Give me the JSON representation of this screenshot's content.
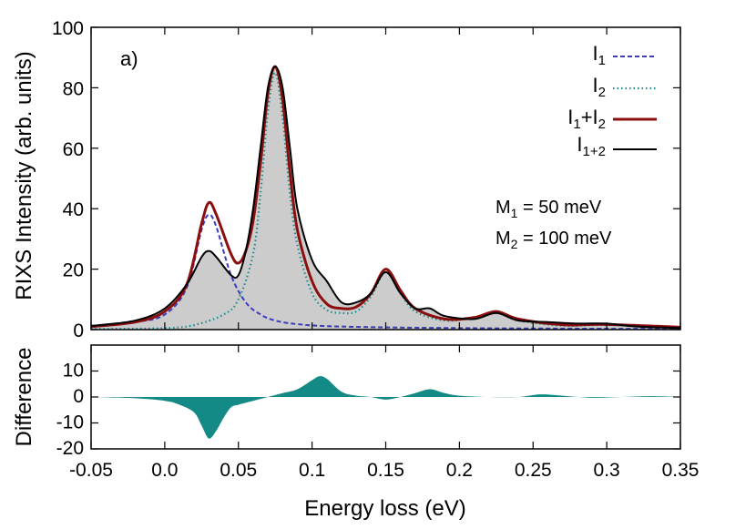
{
  "chart_data": [
    {
      "type": "line",
      "panel_label": "a)",
      "ylabel": "RIXS Intensity (arb. units)",
      "xlim": [
        -0.05,
        0.35
      ],
      "ylim": [
        0,
        100
      ],
      "xticks": [
        "-0.05",
        "0.0",
        "0.05",
        "0.1",
        "0.15",
        "0.2",
        "0.25",
        "0.3",
        "0.35"
      ],
      "yticks": [
        "0",
        "20",
        "40",
        "60",
        "80",
        "100"
      ],
      "annotations": {
        "m1": "M1 = 50 meV",
        "m2": "M2 = 100 meV"
      },
      "colors": {
        "i1": "#3b3bc0",
        "i2": "#1f8a8a",
        "sum": "#8b0f0f",
        "i12": "#000000",
        "fill": "#cccccc"
      },
      "legend_position": "top-right",
      "series": [
        {
          "key": "i1",
          "name": "I1",
          "x": [
            -0.05,
            -0.02,
            0.0,
            0.015,
            0.025,
            0.03,
            0.035,
            0.045,
            0.055,
            0.065,
            0.075,
            0.09,
            0.12,
            0.2,
            0.35
          ],
          "y": [
            0.8,
            2.5,
            5,
            14,
            33,
            38,
            34,
            18,
            9,
            5,
            3,
            1.8,
            1,
            0.5,
            0.2
          ]
        },
        {
          "key": "i2",
          "name": "I2",
          "x": [
            -0.05,
            0.0,
            0.02,
            0.04,
            0.05,
            0.06,
            0.065,
            0.07,
            0.075,
            0.08,
            0.085,
            0.09,
            0.1,
            0.11,
            0.12,
            0.13,
            0.14,
            0.15,
            0.16,
            0.17,
            0.19,
            0.21,
            0.225,
            0.24,
            0.27,
            0.3,
            0.35
          ],
          "y": [
            0.2,
            0.5,
            1.5,
            5,
            10,
            25,
            45,
            72,
            85,
            70,
            45,
            28,
            12,
            6.5,
            5.5,
            6,
            11,
            19,
            12,
            6,
            3,
            4,
            5.5,
            3,
            1.3,
            1.5,
            0.8
          ]
        },
        {
          "key": "sum",
          "name": "I1+I2",
          "x": [
            -0.05,
            -0.02,
            0.0,
            0.015,
            0.025,
            0.03,
            0.035,
            0.045,
            0.05,
            0.055,
            0.06,
            0.065,
            0.07,
            0.075,
            0.08,
            0.085,
            0.09,
            0.1,
            0.11,
            0.12,
            0.13,
            0.14,
            0.15,
            0.16,
            0.17,
            0.19,
            0.21,
            0.225,
            0.24,
            0.27,
            0.3,
            0.35
          ],
          "y": [
            1,
            2.5,
            6,
            15,
            35,
            42,
            38,
            25,
            22,
            26,
            36,
            55,
            78,
            87,
            76,
            52,
            33,
            16,
            8.5,
            7,
            7.5,
            12,
            20,
            13,
            7,
            3.5,
            4,
            6,
            3.5,
            1.6,
            1.7,
            0.8
          ]
        },
        {
          "key": "i12",
          "name": "I1+2",
          "x": [
            -0.05,
            -0.02,
            0.0,
            0.015,
            0.025,
            0.03,
            0.035,
            0.045,
            0.05,
            0.055,
            0.06,
            0.065,
            0.07,
            0.075,
            0.08,
            0.085,
            0.09,
            0.1,
            0.11,
            0.12,
            0.13,
            0.14,
            0.15,
            0.16,
            0.17,
            0.18,
            0.19,
            0.21,
            0.225,
            0.24,
            0.26,
            0.28,
            0.3,
            0.32,
            0.35
          ],
          "y": [
            1.2,
            3,
            7,
            15,
            24,
            26,
            24,
            18,
            18,
            26,
            40,
            60,
            80,
            87,
            80,
            60,
            40,
            23,
            16,
            9,
            9,
            12,
            19,
            12,
            7,
            7,
            4.5,
            3.5,
            5.5,
            3,
            2.5,
            2,
            2,
            1,
            0.5
          ]
        }
      ]
    },
    {
      "type": "area",
      "xlabel": "Energy loss (eV)",
      "ylabel": "Difference",
      "xlim": [
        -0.05,
        0.35
      ],
      "ylim": [
        -20,
        20
      ],
      "yticks": [
        "-20",
        "-10",
        "0",
        "10"
      ],
      "color": "#138a85",
      "series": [
        {
          "name": "",
          "x": [
            -0.05,
            -0.02,
            0.0,
            0.01,
            0.02,
            0.025,
            0.03,
            0.035,
            0.04,
            0.045,
            0.05,
            0.06,
            0.07,
            0.08,
            0.09,
            0.1,
            0.105,
            0.11,
            0.12,
            0.13,
            0.14,
            0.15,
            0.16,
            0.17,
            0.18,
            0.19,
            0.2,
            0.22,
            0.24,
            0.255,
            0.27,
            0.29,
            0.31,
            0.33,
            0.35
          ],
          "y": [
            0,
            -0.5,
            -1.5,
            -3,
            -6,
            -11,
            -16,
            -13,
            -8,
            -4,
            -3,
            -1.5,
            0,
            1.5,
            3,
            6.5,
            8,
            7,
            2,
            0.5,
            0,
            -1,
            0,
            1.5,
            3,
            1.5,
            0.5,
            0,
            0,
            1,
            0.5,
            -0.3,
            0,
            0.3,
            0
          ]
        }
      ]
    }
  ]
}
